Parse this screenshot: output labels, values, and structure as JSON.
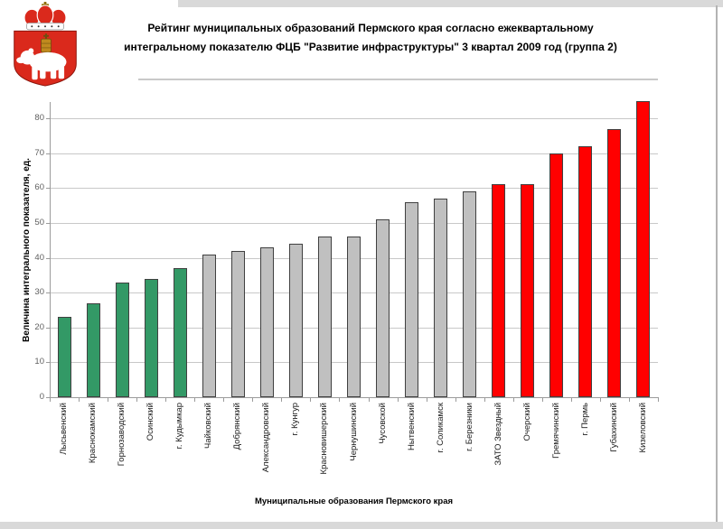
{
  "header": {
    "title_line1": "Рейтинг муниципальных образований Пермского края согласно ежеквартальному",
    "title_line2": "интегральному показателю ФЦБ \"Развитие инфраструктуры\" 3 квартал 2009 год (группа 2)",
    "logo": "perm-krai-coat-of-arms"
  },
  "chart_data": {
    "type": "bar",
    "title": "Рейтинг муниципальных образований Пермского края согласно ежеквартальному интегральному показателю ФЦБ \"Развитие инфраструктуры\" 3 квартал 2009 год (группа 2)",
    "xlabel": "Муниципальные образования Пермского края",
    "ylabel": "Величина интегрального показателя, ед.",
    "ylim": [
      0,
      85
    ],
    "yticks": [
      0,
      10,
      20,
      30,
      40,
      50,
      60,
      70,
      80
    ],
    "grid": true,
    "legend": false,
    "categories": [
      "Лысьвенский",
      "Краснокамский",
      "Горнозаводский",
      "Осинский",
      "г. Кудымкар",
      "Чайковский",
      "Добрянский",
      "Александровский",
      "г. Кунгур",
      "Красновишерский",
      "Чернушинский",
      "Чусовской",
      "Нытвенский",
      "г. Соликамск",
      "г. Березники",
      "ЗАТО Звездный",
      "Очерский",
      "Гремячинский",
      "г. Пермь",
      "Губахинский",
      "Кизеловский"
    ],
    "values": [
      23,
      27,
      33,
      34,
      37,
      41,
      42,
      43,
      44,
      46,
      46,
      51,
      56,
      57,
      59,
      61,
      61,
      70,
      72,
      77,
      85
    ],
    "bar_groups": [
      "green",
      "green",
      "green",
      "green",
      "green",
      "gray",
      "gray",
      "gray",
      "gray",
      "gray",
      "gray",
      "gray",
      "gray",
      "gray",
      "gray",
      "red",
      "red",
      "red",
      "red",
      "red",
      "red"
    ],
    "group_colors": {
      "green": "#339966",
      "gray": "#c0c0c0",
      "red": "#ff0000"
    },
    "border_color": "#404040",
    "gridline_color": "#c8c8c8"
  }
}
